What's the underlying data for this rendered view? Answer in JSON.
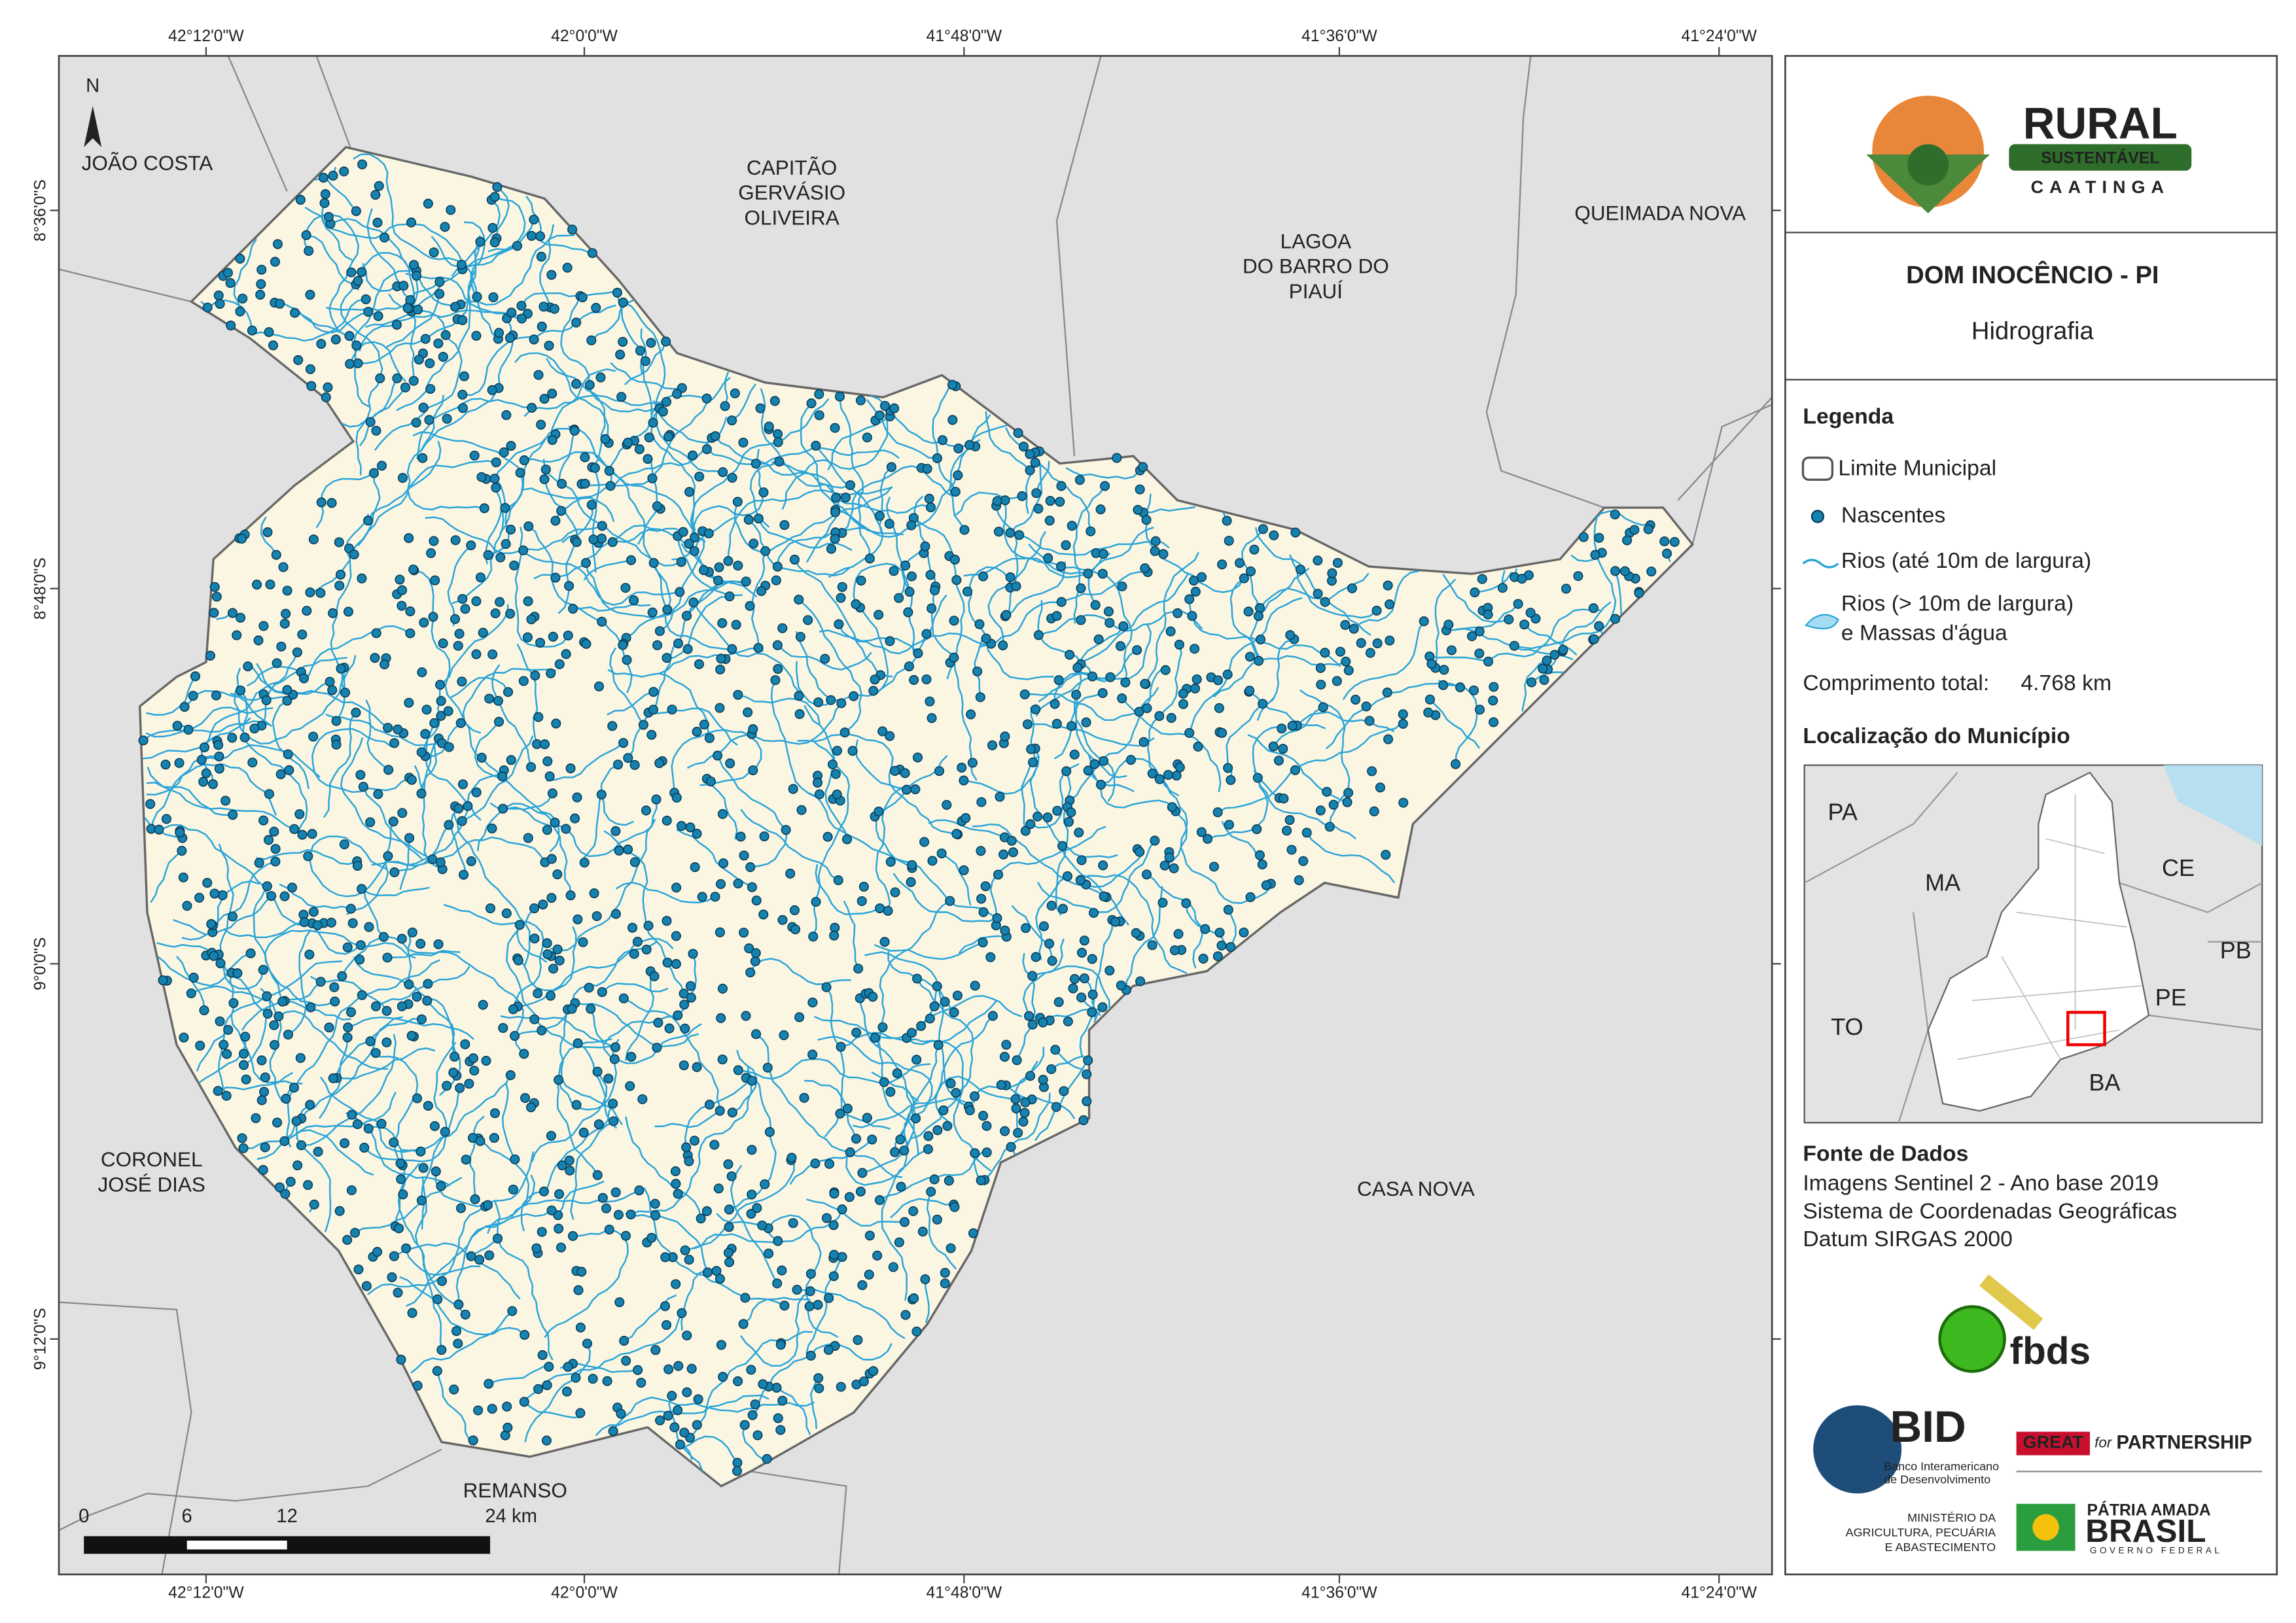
{
  "map": {
    "graticule": {
      "longitudes": [
        "42°12'0\"W",
        "42°0'0\"W",
        "41°48'0\"W",
        "41°36'0\"W",
        "41°24'0\"W"
      ],
      "latitudes": [
        "8°36'0\"S",
        "8°48'0\"S",
        "9°0'0\"S",
        "9°12'0\"S"
      ]
    },
    "neighbors": [
      [
        "JOÃO COSTA"
      ],
      [
        "CAPITÃO",
        "GERVÁSIO",
        "OLIVEIRA"
      ],
      [
        "LAGOA",
        "DO BARRO DO",
        "PIAUÍ"
      ],
      [
        "QUEIMADA NOVA"
      ],
      [
        "CORONEL",
        "JOSÉ DIAS"
      ],
      [
        "CASA NOVA"
      ],
      [
        "REMANSO"
      ]
    ],
    "north": "N",
    "scale_bar": [
      "0",
      "6",
      "12",
      "24 km"
    ]
  },
  "panel": {
    "logo": {
      "line1": "RURAL",
      "line2": "SUSTENTÁVEL",
      "line3": "CAATINGA"
    },
    "title": "DOM INOCÊNCIO - PI",
    "subtitle": "Hidrografia",
    "legend": {
      "title": "Legenda",
      "items": [
        "Limite Municipal",
        "Nascentes",
        "Rios (até 10m de largura)",
        [
          "Rios (> 10m de largura)",
          "e Massas d'água"
        ]
      ],
      "length_label": "Comprimento total:",
      "length_value": "4.768 km"
    },
    "location": {
      "title": "Localização do Município",
      "states": [
        "PA",
        "MA",
        "CE",
        "PB",
        "PE",
        "TO",
        "BA"
      ]
    },
    "sources": {
      "title": "Fonte de Dados",
      "lines": [
        "Imagens Sentinel 2 - Ano base 2019",
        "Sistema de Coordenadas Geográficas",
        "Datum SIRGAS 2000"
      ]
    },
    "logos": {
      "fbds": "fbds",
      "bid": "BID",
      "bid_sub": [
        "Banco Interamericano",
        "de Desenvolvimento"
      ],
      "great": "GREAT",
      "for": "for",
      "partnership": "PARTNERSHIP",
      "ministry": [
        "MINISTÉRIO DA",
        "AGRICULTURA, PECUÁRIA",
        "E ABASTECIMENTO"
      ],
      "patria": "PÁTRIA AMADA",
      "brasil": "BRASIL",
      "governo": "GOVERNO FEDERAL"
    }
  }
}
